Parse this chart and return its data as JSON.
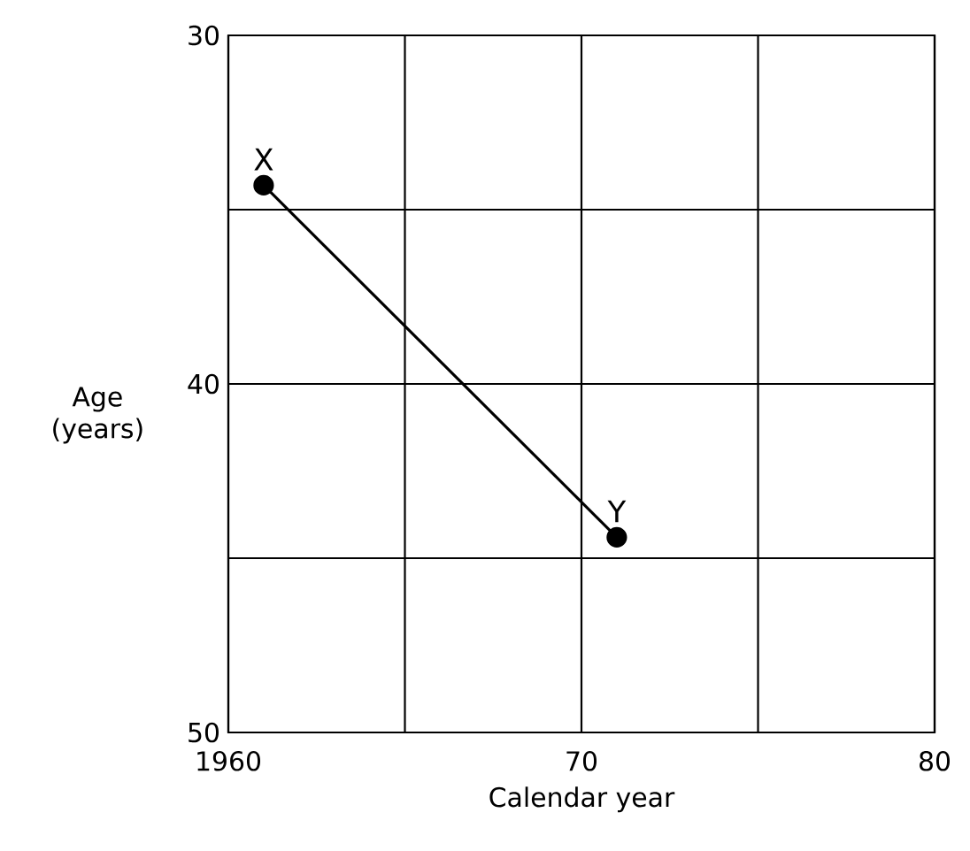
{
  "chart_data": {
    "type": "line",
    "xlabel": "Calendar year",
    "ylabel": "Age (years)",
    "x": [
      1961,
      1971
    ],
    "series": [
      {
        "color": "#000000",
        "values": [
          34.3,
          44.4
        ]
      }
    ],
    "xlim": [
      1960,
      1980
    ],
    "ylim": [
      50,
      30
    ],
    "xticks": [
      1960,
      {
        "value": 1965,
        "label": null
      },
      {
        "value": 1970,
        "label": "70"
      },
      {
        "value": 1975,
        "label": null
      },
      {
        "value": 1980,
        "label": "80"
      }
    ],
    "yticks": [
      30,
      {
        "value": 35,
        "label": null
      },
      40,
      {
        "value": 45,
        "label": null
      },
      50
    ],
    "annotations": [
      {
        "text": "X",
        "x": 1961,
        "y": 34.3
      },
      {
        "text": "Y",
        "x": 1971,
        "y": 44.4
      }
    ],
    "grid": true,
    "marker": "circle",
    "line_style": "solid"
  }
}
